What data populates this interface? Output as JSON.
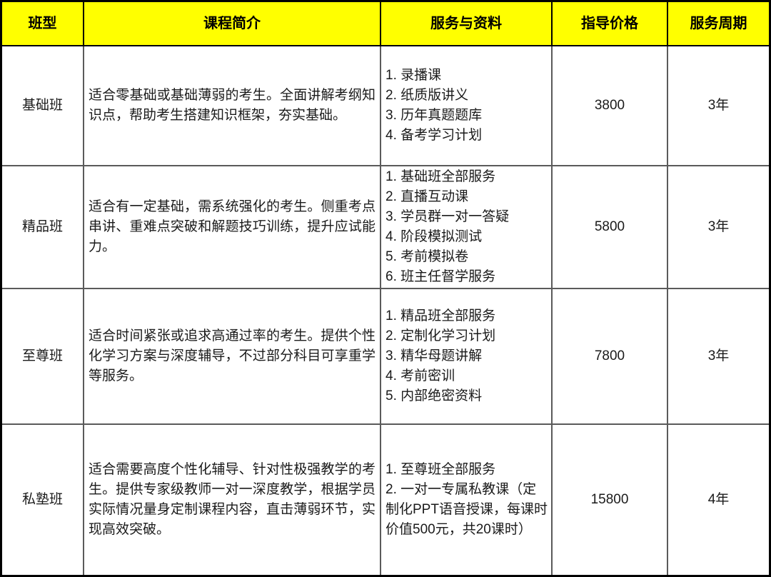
{
  "header": {
    "columns": [
      "班型",
      "课程简介",
      "服务与资料",
      "指导价格",
      "服务周期"
    ]
  },
  "rows": [
    {
      "class_type": "基础班",
      "intro": "适合零基础或基础薄弱的考生。全面讲解考纲知识点，帮助考生搭建知识框架，夯实基础。",
      "services": [
        "1. 录播课",
        "2. 纸质版讲义",
        "3. 历年真题题库",
        "4. 备考学习计划"
      ],
      "price": "3800",
      "period": "3年"
    },
    {
      "class_type": "精品班",
      "intro": "适合有一定基础，需系统强化的考生。侧重考点串讲、重难点突破和解题技巧训练，提升应试能力。",
      "services": [
        "1. 基础班全部服务",
        "2. 直播互动课",
        "3. 学员群一对一答疑",
        "4. 阶段模拟测试",
        "5. 考前模拟卷",
        "6. 班主任督学服务"
      ],
      "price": "5800",
      "period": "3年"
    },
    {
      "class_type": "至尊班",
      "intro": "适合时间紧张或追求高通过率的考生。提供个性化学习方案与深度辅导，不过部分科目可享重学等服务。",
      "services": [
        "1. 精品班全部服务",
        "2. 定制化学习计划",
        "3. 精华母题讲解",
        "4. 考前密训",
        "5. 内部绝密资料"
      ],
      "price": "7800",
      "period": "3年"
    },
    {
      "class_type": "私塾班",
      "intro": "适合需要高度个性化辅导、针对性极强教学的考生。提供专家级教师一对一深度教学，根据学员实际情况量身定制课程内容，直击薄弱环节，实现高效突破。",
      "services": [
        "1. 至尊班全部服务",
        "2. 一对一专属私教课（定制化PPT语音授课，每课时价值500元，共20课时）"
      ],
      "price": "15800",
      "period": "4年"
    }
  ],
  "colors": {
    "header_bg": "#ffff00",
    "header_text": "#000000",
    "border_outer": "#000000",
    "border_inner": "#5a5a5a"
  }
}
